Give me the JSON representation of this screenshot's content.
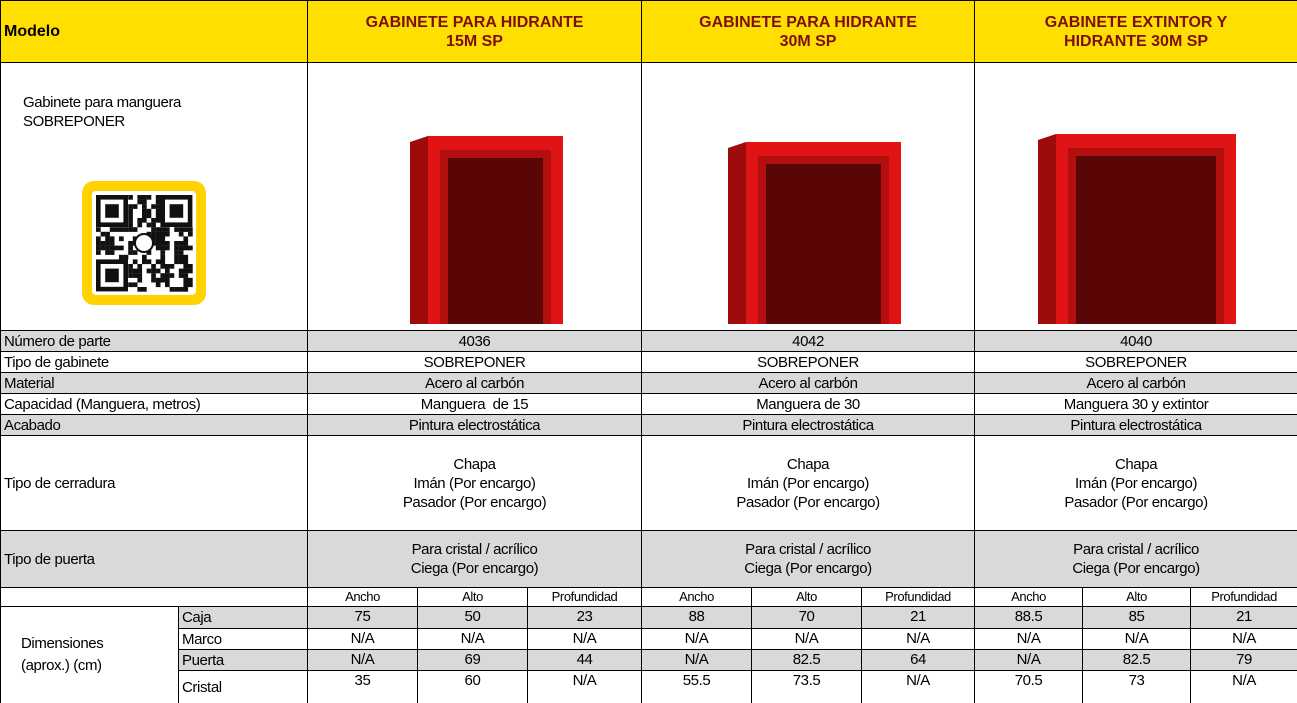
{
  "header": {
    "model_label": "Modelo",
    "products": [
      {
        "title_lines": [
          "GABINETE PARA HIDRANTE",
          "15M SP"
        ]
      },
      {
        "title_lines": [
          "GABINETE PARA HIDRANTE",
          "30M SP"
        ]
      },
      {
        "title_lines": [
          "GABINETE EXTINTOR Y",
          "HIDRANTE 30M SP"
        ]
      }
    ]
  },
  "intro": {
    "lines": [
      "Gabinete para manguera",
      "SOBREPONER"
    ]
  },
  "specs": [
    {
      "label": "Número de parte",
      "values": [
        [
          "4036"
        ],
        [
          "4042"
        ],
        [
          "4040"
        ]
      ]
    },
    {
      "label": "Tipo de gabinete",
      "values": [
        [
          "SOBREPONER"
        ],
        [
          "SOBREPONER"
        ],
        [
          "SOBREPONER"
        ]
      ]
    },
    {
      "label": "Material",
      "values": [
        [
          "Acero al carbón"
        ],
        [
          "Acero al carbón"
        ],
        [
          "Acero al carbón"
        ]
      ]
    },
    {
      "label": "Capacidad (Manguera, metros)",
      "values": [
        [
          "Manguera  de 15"
        ],
        [
          "Manguera de 30"
        ],
        [
          "Manguera 30 y extintor"
        ]
      ]
    },
    {
      "label": "Acabado",
      "values": [
        [
          "Pintura electrostática"
        ],
        [
          "Pintura electrostática"
        ],
        [
          "Pintura electrostática"
        ]
      ]
    },
    {
      "label": "Tipo de cerradura",
      "values": [
        [
          "Chapa",
          "Imán (Por encargo)",
          "Pasador (Por encargo)"
        ],
        [
          "Chapa",
          "Imán (Por encargo)",
          "Pasador (Por encargo)"
        ],
        [
          "Chapa",
          "Imán (Por encargo)",
          "Pasador (Por encargo)"
        ]
      ]
    },
    {
      "label": "Tipo de puerta",
      "values": [
        [
          "Para cristal / acrílico",
          "Ciega (Por encargo)"
        ],
        [
          "Para cristal / acrílico",
          "Ciega (Por encargo)"
        ],
        [
          "Para cristal / acrílico",
          "Ciega (Por encargo)"
        ]
      ]
    }
  ],
  "dimensions": {
    "label_lines": [
      "Dimensiones",
      "(aprox.) (cm)"
    ],
    "subheaders": [
      "Ancho",
      "Alto",
      "Profundidad",
      "Ancho",
      "Alto",
      "Profundidad",
      "Ancho",
      "Alto",
      "Profundidad"
    ],
    "rows": [
      {
        "label": "Caja",
        "values": [
          75,
          50,
          23,
          88,
          70,
          21,
          88.5,
          85,
          21
        ]
      },
      {
        "label": "Marco",
        "values": [
          "N/A",
          "N/A",
          "N/A",
          "N/A",
          "N/A",
          "N/A",
          "N/A",
          "N/A",
          "N/A"
        ]
      },
      {
        "label": "Puerta",
        "values": [
          "N/A",
          69,
          44,
          "N/A",
          82.5,
          64,
          "N/A",
          82.5,
          79
        ]
      },
      {
        "label": "Cristal",
        "values": [
          35,
          60,
          "N/A",
          55.5,
          73.5,
          "N/A",
          70.5,
          73,
          "N/A"
        ]
      }
    ]
  }
}
